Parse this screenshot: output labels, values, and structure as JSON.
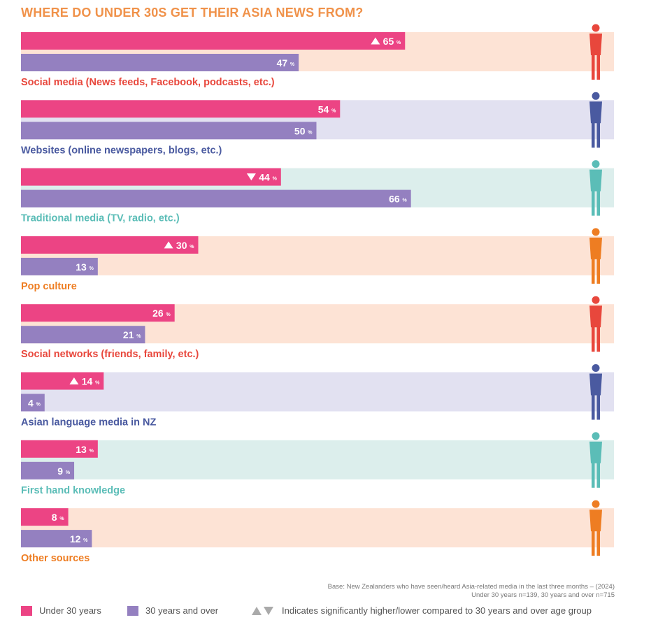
{
  "colors": {
    "under30": "#EC4484",
    "over30": "#9480C0",
    "title": "#F0924A",
    "figure_orange": "#EE7D22",
    "figure_red": "#E8473C",
    "figure_navy": "#4A5AA0",
    "figure_teal": "#5BBDB7"
  },
  "chart_data": {
    "type": "bar",
    "orientation": "horizontal",
    "title": "WHERE DO UNDER 30S GET THEIR ASIA NEWS FROM?",
    "unit": "%",
    "categories": [
      "Social media (News feeds, Facebook, podcasts, etc.)",
      "Websites (online newspapers, blogs, etc.)",
      "Traditional media (TV, radio, etc.)",
      "Pop culture",
      "Social networks (friends, family, etc.)",
      "Asian language media in NZ",
      "First hand knowledge",
      "Other sources"
    ],
    "series": [
      {
        "name": "Under 30 years",
        "values": [
          65,
          54,
          44,
          30,
          26,
          14,
          13,
          8
        ]
      },
      {
        "name": "30 years and over",
        "values": [
          47,
          50,
          66,
          13,
          21,
          4,
          9,
          12
        ]
      }
    ],
    "significance_under30": [
      "higher",
      "",
      "lower",
      "higher",
      "",
      "higher",
      "",
      ""
    ],
    "category_colors": [
      "#E8473C",
      "#4A5AA0",
      "#5BBDB7",
      "#EE7D22",
      "#E8473C",
      "#4A5AA0",
      "#5BBDB7",
      "#EE7D22"
    ],
    "band_colors": [
      "#FDE3D5",
      "#E2E1F1",
      "#DCEEEC",
      "#FDE3D5",
      "#FDE3D5",
      "#E2E1F1",
      "#DCEEEC",
      "#FDE3D5"
    ],
    "figure_icons": [
      "woman-with-phone-icon",
      "person-at-desk-icon",
      "tv-news-crew-icon",
      "two-men-shaking-hands-icon",
      "two-women-talking-icon",
      "interview-camera-crew-icon",
      "two-men-talking-icon",
      "person-waving-icon"
    ],
    "xlim": [
      0,
      100
    ],
    "legend": "bottom"
  },
  "footer": {
    "base_note": "Base: New Zealanders who have seen/heard Asia-related media in the last three months – (2024) Under 30 years n=139, 30 years and over n=715"
  },
  "legend": {
    "under30": "Under 30 years",
    "over30": "30 years and over",
    "significance": "Indicates significantly higher/lower compared to 30 years and over age group"
  }
}
